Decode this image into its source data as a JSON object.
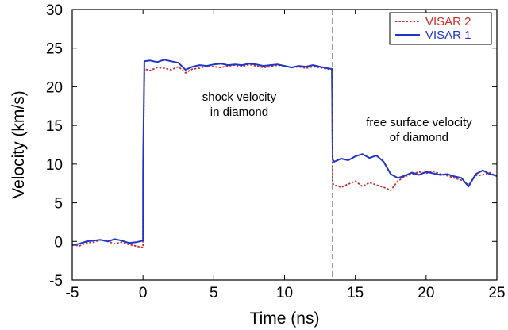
{
  "chart_data": {
    "type": "line",
    "xlabel": "Time (ns)",
    "ylabel": "Velocity (km/s)",
    "xlim": [
      -5,
      25
    ],
    "ylim": [
      -5,
      30
    ],
    "xticks": [
      "-5",
      "0",
      "5",
      "10",
      "15",
      "20",
      "25"
    ],
    "yticks": [
      "-5",
      "0",
      "5",
      "10",
      "15",
      "20",
      "25",
      "30"
    ],
    "grid": false,
    "legend_position": "top-right",
    "annotations": [
      {
        "lines": [
          "shock velocity",
          "in diamond"
        ],
        "x": 6.8,
        "y": 18.2
      },
      {
        "lines": [
          "free surface velocity",
          "of diamond"
        ],
        "x": 19.5,
        "y": 14.9
      }
    ],
    "vertical_marker": {
      "x": 13.4,
      "style": "dashed",
      "color": "#555555"
    },
    "series": [
      {
        "name": "VISAR 2",
        "color": "#cc2a2a",
        "style": "dotted",
        "x": [
          -5,
          -4.5,
          -4,
          -3.5,
          -3,
          -2.5,
          -2,
          -1.5,
          -1,
          -0.5,
          0,
          0.01,
          0.1,
          0.5,
          1,
          1.5,
          2,
          2.5,
          3,
          3.5,
          4,
          4.5,
          5,
          5.5,
          6,
          6.5,
          7,
          7.5,
          8,
          8.5,
          9,
          9.5,
          10,
          10.5,
          11,
          11.5,
          12,
          12.5,
          13,
          13.35,
          13.4,
          13.5,
          14,
          14.5,
          15,
          15.5,
          16,
          16.5,
          17,
          17.5,
          18,
          18.5,
          19,
          19.5,
          20,
          20.5,
          21,
          21.5,
          22,
          22.5,
          23,
          23.5,
          24,
          24.5,
          25
        ],
        "values": [
          -0.4,
          -0.6,
          -0.2,
          -0.1,
          0.2,
          0.0,
          -0.3,
          -0.1,
          -0.4,
          -0.6,
          -0.8,
          8.5,
          22.3,
          22.1,
          22.5,
          22.4,
          22.2,
          22.6,
          21.8,
          22.3,
          22.4,
          22.7,
          22.6,
          22.5,
          22.7,
          22.8,
          22.6,
          22.9,
          22.7,
          22.5,
          22.6,
          22.8,
          22.7,
          22.5,
          22.6,
          22.4,
          22.6,
          22.5,
          22.3,
          22.2,
          7.5,
          7.3,
          7.0,
          7.4,
          7.8,
          7.1,
          7.6,
          7.3,
          7.0,
          6.6,
          7.8,
          8.4,
          8.7,
          9.0,
          8.8,
          9.1,
          8.7,
          8.5,
          8.2,
          7.9,
          7.3,
          8.5,
          8.6,
          8.9,
          8.4
        ]
      },
      {
        "name": "VISAR 1",
        "color": "#1f35c8",
        "style": "solid",
        "x": [
          -5,
          -4.5,
          -4,
          -3.5,
          -3,
          -2.5,
          -2,
          -1.5,
          -1,
          -0.5,
          0,
          0.01,
          0.1,
          0.5,
          1,
          1.5,
          2,
          2.5,
          3,
          3.5,
          4,
          4.5,
          5,
          5.5,
          6,
          6.5,
          7,
          7.5,
          8,
          8.5,
          9,
          9.5,
          10,
          10.5,
          11,
          11.5,
          12,
          12.5,
          13,
          13.35,
          13.4,
          13.5,
          14,
          14.5,
          15,
          15.5,
          16,
          16.5,
          17,
          17.5,
          18,
          18.5,
          19,
          19.5,
          20,
          20.5,
          21,
          21.5,
          22,
          22.5,
          23,
          23.5,
          24,
          24.5,
          25
        ],
        "values": [
          -0.5,
          -0.3,
          0.0,
          0.1,
          0.2,
          0.0,
          0.3,
          0.1,
          -0.2,
          -0.1,
          0.1,
          10.0,
          23.3,
          23.4,
          23.2,
          23.5,
          23.3,
          23.1,
          22.2,
          22.6,
          22.8,
          22.7,
          22.9,
          23.0,
          22.8,
          22.9,
          22.8,
          23.0,
          22.9,
          22.7,
          22.8,
          22.9,
          22.7,
          22.5,
          22.7,
          22.6,
          22.8,
          22.6,
          22.4,
          22.3,
          10.6,
          10.3,
          10.7,
          10.5,
          11.0,
          11.3,
          10.8,
          11.1,
          10.3,
          8.7,
          8.2,
          8.5,
          8.9,
          8.6,
          9.0,
          8.8,
          8.6,
          8.7,
          8.4,
          8.2,
          7.1,
          8.7,
          9.2,
          8.7,
          8.5
        ]
      }
    ]
  }
}
